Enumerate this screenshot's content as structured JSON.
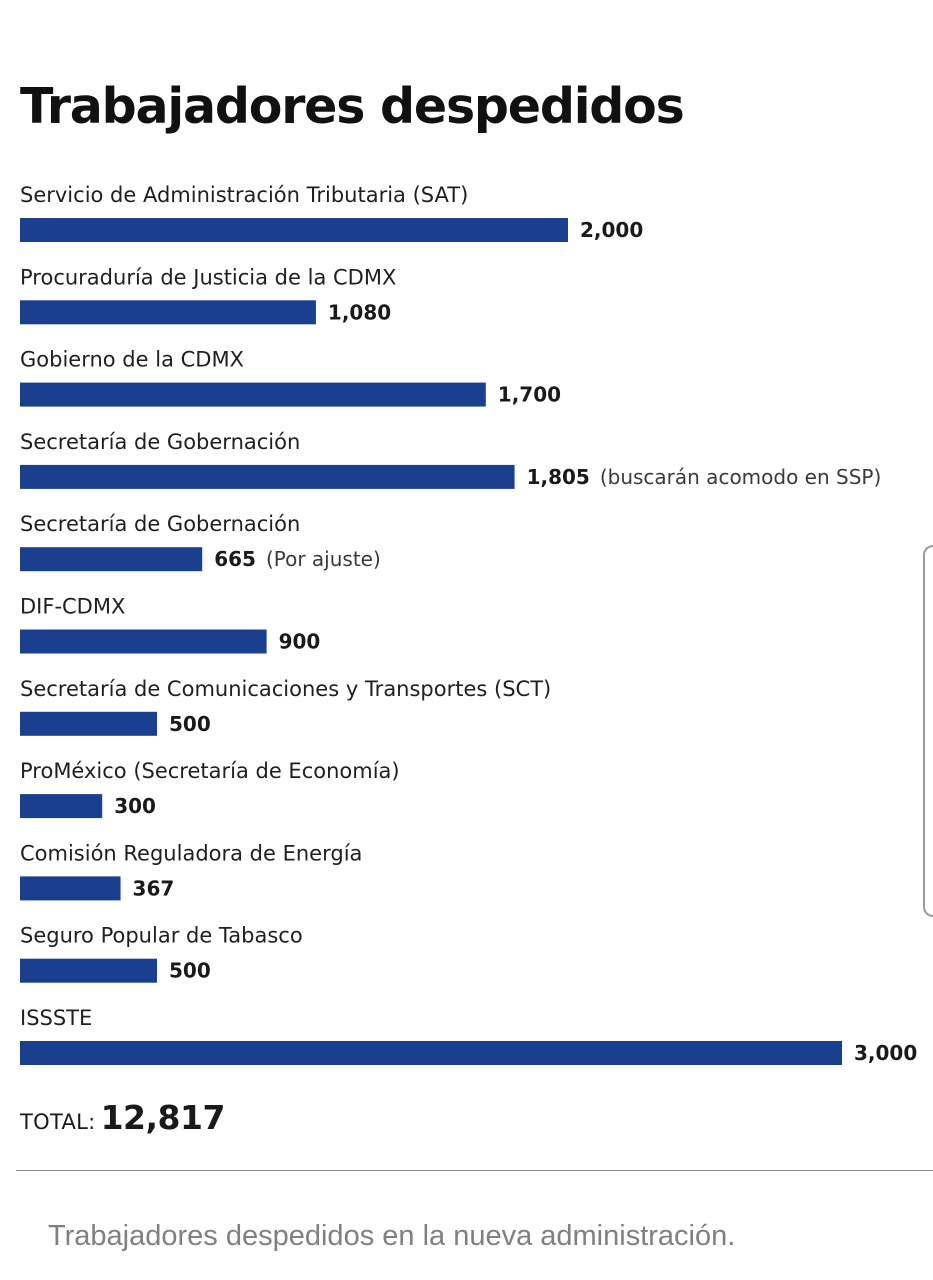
{
  "title": "Trabajadores despedidos",
  "chart_data": {
    "type": "bar",
    "orientation": "horizontal",
    "title": "Trabajadores despedidos",
    "xlabel": "",
    "ylabel": "",
    "grid": false,
    "xlim": [
      0,
      3000
    ],
    "bar_color": "#1a3f8f",
    "categories": [
      "Servicio de Administración Tributaria (SAT)",
      "Procuraduría de Justicia de la CDMX",
      "Gobierno de la CDMX",
      "Secretaría de Gobernación",
      "Secretaría de Gobernación",
      "DIF-CDMX",
      "Secretaría de Comunicaciones y Transportes (SCT)",
      "ProMéxico (Secretaría de Economía)",
      "Comisión Reguladora de Energía",
      "Seguro Popular de Tabasco",
      "ISSSTE"
    ],
    "values": [
      2000,
      1080,
      1700,
      1805,
      665,
      900,
      500,
      300,
      367,
      500,
      3000
    ],
    "value_labels": [
      "2,000",
      "1,080",
      "1,700",
      "1,805",
      "665",
      "900",
      "500",
      "300",
      "367",
      "500",
      "3,000"
    ],
    "annotations": [
      "",
      "",
      "",
      "(buscarán acomodo en SSP)",
      "(Por ajuste)",
      "",
      "",
      "",
      "",
      "",
      ""
    ]
  },
  "total": {
    "label": "TOTAL:",
    "value": "12,817"
  },
  "caption": "Trabajadores despedidos en la nueva administración."
}
